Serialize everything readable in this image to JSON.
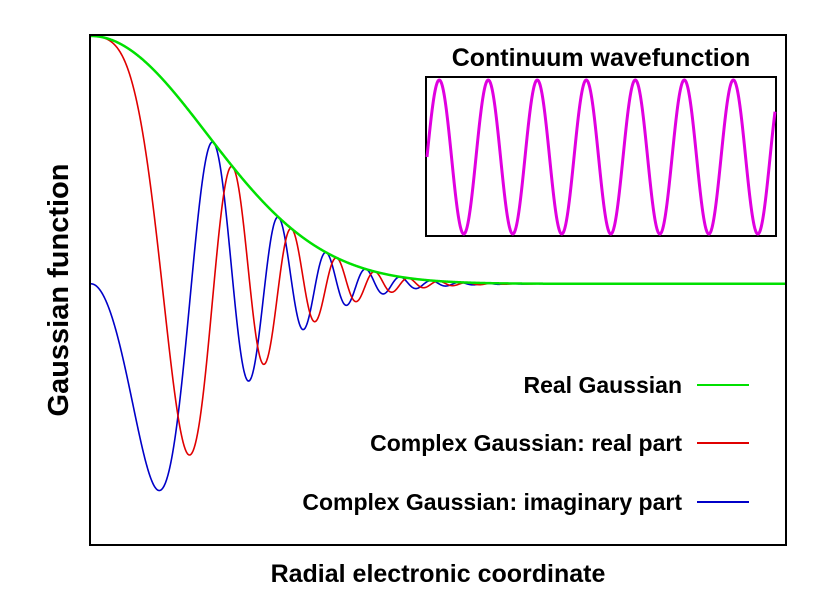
{
  "chart_data": {
    "type": "line",
    "xlabel": "Radial electronic coordinate",
    "ylabel": "Gaussian function",
    "grid": false,
    "axis_ticks": false,
    "xlim": [
      0,
      1
    ],
    "ylim": [
      -1.05,
      1.0
    ],
    "legend_placement": "bottom-right",
    "series": [
      {
        "name": "Real Gaussian",
        "color": "#00e000",
        "function": "exp(-a*x^2)",
        "gaussian_exponent": 18
      },
      {
        "name": "Complex Gaussian: real part",
        "color": "#e00000",
        "function": "exp(-a*x^2)*cos(k*x^2)",
        "gaussian_exponent": 18,
        "chirp_coefficient": 150
      },
      {
        "name": "Complex Gaussian: imaginary part",
        "color": "#0000c8",
        "function": "-exp(-a*x^2)*sin(k*x^2)",
        "gaussian_exponent": 18,
        "chirp_coefficient": 150
      }
    ],
    "inset": {
      "title": "Continuum wavefunction",
      "color": "#e000e0",
      "function": "sin(x)",
      "periods": 7.1
    }
  }
}
